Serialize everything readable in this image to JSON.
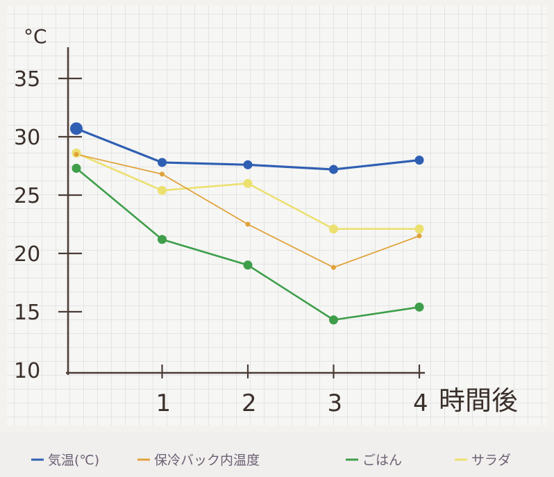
{
  "chart_data": {
    "type": "line",
    "ylabel": "°C",
    "xlabel": "時間後",
    "x": [
      0,
      1,
      2,
      3,
      4
    ],
    "x_tick_labels": [
      "1",
      "2",
      "3",
      "4"
    ],
    "y_tick_labels": [
      "35",
      "30",
      "25",
      "20",
      "15",
      "10"
    ],
    "ylim": [
      10,
      37
    ],
    "grid": true,
    "legend_position": "bottom",
    "series": [
      {
        "name": "気温(℃)",
        "color": "#2f5fb3",
        "values": [
          30.7,
          27.8,
          27.6,
          27.2,
          28.0
        ]
      },
      {
        "name": "保冷バック内温度",
        "color": "#e0a23a",
        "values": [
          28.5,
          26.8,
          22.5,
          18.8,
          21.5
        ]
      },
      {
        "name": "ごはん",
        "color": "#3e9e4a",
        "values": [
          27.3,
          21.2,
          19.0,
          14.3,
          15.4
        ]
      },
      {
        "name": "サラダ",
        "color": "#ece070",
        "values": [
          28.6,
          25.4,
          26.0,
          22.1,
          22.1
        ]
      }
    ]
  }
}
